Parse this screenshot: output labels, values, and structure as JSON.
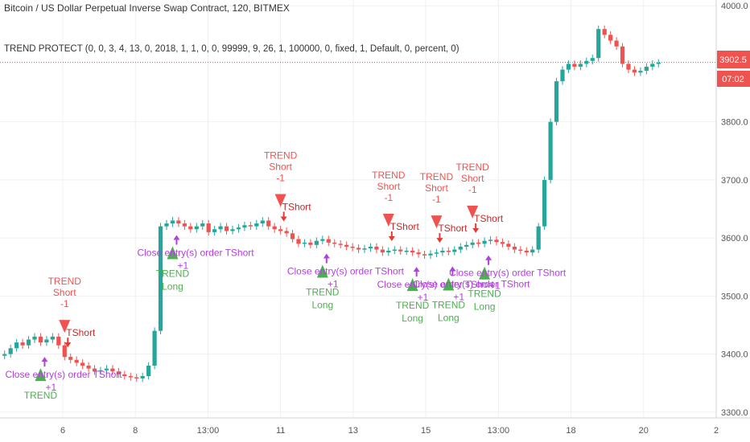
{
  "header": {
    "symbol_title": "Bitcoin / US Dollar Perpetual Inverse Swap Contract, 120, BITMEX",
    "study_title": "TREND PROTECT (0, 0, 3, 4, 13, 0, 2018, 1, 1, 0, 0, 99999, 9, 26, 1, 100000, 0, fixed, 1, Default, 0, percent, 0)"
  },
  "price_axis": {
    "ticks": [
      "4000.0",
      "3800.0",
      "3700.0",
      "3600.0",
      "3500.0",
      "3400.0",
      "3300.0"
    ],
    "last_price": "3902.5",
    "countdown": "07:02"
  },
  "time_axis": {
    "ticks": [
      "6",
      "8",
      "13:00",
      "11",
      "13",
      "15",
      "13:00",
      "18",
      "20",
      "2"
    ]
  },
  "colors": {
    "up": "#26a69a",
    "down": "#ef5350",
    "long_marker": "#4caf50",
    "short_marker": "#ef5350",
    "close_text": "#b23fe0",
    "price_line": "#ef5350"
  },
  "chart_data": {
    "type": "candlestick",
    "ylim": [
      3290,
      4010
    ],
    "close_series": [
      3400,
      3410,
      3420,
      3415,
      3425,
      3430,
      3420,
      3425,
      3430,
      3415,
      3395,
      3390,
      3385,
      3380,
      3375,
      3370,
      3372,
      3375,
      3370,
      3365,
      3362,
      3360,
      3358,
      3362,
      3380,
      3440,
      3620,
      3625,
      3630,
      3625,
      3620,
      3615,
      3620,
      3625,
      3610,
      3615,
      3620,
      3612,
      3615,
      3618,
      3622,
      3620,
      3625,
      3630,
      3620,
      3615,
      3612,
      3608,
      3598,
      3590,
      3592,
      3588,
      3595,
      3598,
      3592,
      3590,
      3588,
      3585,
      3583,
      3580,
      3582,
      3585,
      3580,
      3575,
      3578,
      3580,
      3577,
      3578,
      3575,
      3572,
      3570,
      3573,
      3575,
      3578,
      3576,
      3580,
      3585,
      3588,
      3592,
      3590,
      3595,
      3597,
      3593,
      3590,
      3585,
      3580,
      3578,
      3575,
      3580,
      3620,
      3700,
      3800,
      3870,
      3890,
      3900,
      3895,
      3900,
      3905,
      3910,
      3960,
      3950,
      3940,
      3930,
      3900,
      3890,
      3885,
      3888,
      3895,
      3900,
      3902
    ],
    "annotations": [
      {
        "type": "short",
        "title": "TREND",
        "subtitle": "Short",
        "qty": "-1",
        "order": "TShort"
      },
      {
        "type": "short",
        "title": "TREND",
        "subtitle": "Short",
        "qty": "-1",
        "order": "TShort"
      },
      {
        "type": "short",
        "title": "TREND",
        "subtitle": "Short",
        "qty": "-1",
        "order": "TShort"
      },
      {
        "type": "short",
        "title": "TREND",
        "subtitle": "Short",
        "qty": "-1",
        "order": "TShort"
      },
      {
        "type": "short",
        "title": "TREND",
        "subtitle": "Short",
        "qty": "-1",
        "order": "TShort"
      },
      {
        "type": "long",
        "title": "TREND",
        "subtitle": "",
        "qty": "+1",
        "close_label": "Close entry(s) order TShort"
      },
      {
        "type": "long",
        "title": "TREND",
        "subtitle": "Long",
        "qty": "+1",
        "close_label": "Close entry(s) order TShort"
      },
      {
        "type": "long",
        "title": "TREND",
        "subtitle": "Long",
        "qty": "+1",
        "close_label": "Close entry(s) order TShort"
      },
      {
        "type": "long",
        "title": "TREND",
        "subtitle": "Long",
        "qty": "+1",
        "close_label": "Close entry(s) order TShort"
      },
      {
        "type": "long",
        "title": "TREND",
        "subtitle": "Long",
        "qty": "+1",
        "close_label": "Close entry(s) order TShort"
      },
      {
        "type": "long",
        "title": "TREND",
        "subtitle": "Long",
        "qty": "+1",
        "close_label": "Close entry(s) order TShort"
      }
    ]
  }
}
